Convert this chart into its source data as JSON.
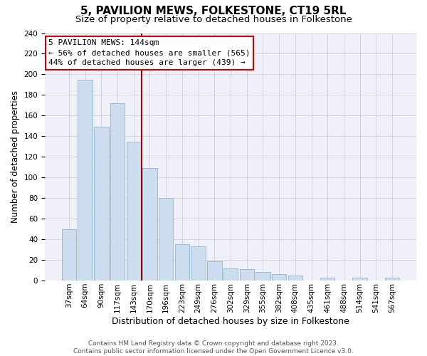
{
  "title": "5, PAVILION MEWS, FOLKESTONE, CT19 5RL",
  "subtitle": "Size of property relative to detached houses in Folkestone",
  "xlabel": "Distribution of detached houses by size in Folkestone",
  "ylabel": "Number of detached properties",
  "footer_line1": "Contains HM Land Registry data © Crown copyright and database right 2023.",
  "footer_line2": "Contains public sector information licensed under the Open Government Licence v3.0.",
  "categories": [
    "37sqm",
    "64sqm",
    "90sqm",
    "117sqm",
    "143sqm",
    "170sqm",
    "196sqm",
    "223sqm",
    "249sqm",
    "276sqm",
    "302sqm",
    "329sqm",
    "355sqm",
    "382sqm",
    "408sqm",
    "435sqm",
    "461sqm",
    "488sqm",
    "514sqm",
    "541sqm",
    "567sqm"
  ],
  "values": [
    50,
    195,
    149,
    172,
    135,
    109,
    80,
    35,
    33,
    19,
    12,
    11,
    8,
    6,
    5,
    0,
    3,
    0,
    3,
    0,
    3
  ],
  "bar_color": "#ccddf0",
  "bar_edge_color": "#92b4d4",
  "ylim": [
    0,
    240
  ],
  "yticks": [
    0,
    20,
    40,
    60,
    80,
    100,
    120,
    140,
    160,
    180,
    200,
    220,
    240
  ],
  "annotation_title": "5 PAVILION MEWS: 144sqm",
  "annotation_line1": "← 56% of detached houses are smaller (565)",
  "annotation_line2": "44% of detached houses are larger (439) →",
  "annotation_box_facecolor": "#ffffff",
  "annotation_box_edgecolor": "#cc0000",
  "property_line_index": 4,
  "title_fontsize": 11,
  "subtitle_fontsize": 9.5,
  "xlabel_fontsize": 9,
  "ylabel_fontsize": 8.5,
  "tick_fontsize": 7.5,
  "annotation_fontsize": 8,
  "footer_fontsize": 6.5
}
